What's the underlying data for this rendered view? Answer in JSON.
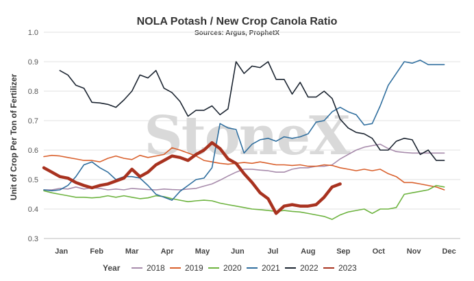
{
  "chart_data": {
    "type": "line",
    "title": "NOLA Potash / New Crop Canola Ratio",
    "subtitle": "Sources: Argus, ProphetX",
    "ylabel": "Unit of Crop Per Ton of Fertilizer",
    "xlabel": "",
    "watermark": "StoneX",
    "ylim": [
      0.3,
      1.0
    ],
    "xlim": [
      0,
      52
    ],
    "yticks": [
      0.3,
      0.4,
      0.5,
      0.6,
      0.7,
      0.8,
      0.9,
      1.0
    ],
    "ytick_labels": [
      "0.3",
      "0.4",
      "0.5",
      "0.6",
      "0.7",
      "0.8",
      "0.9",
      "1.0"
    ],
    "month_labels": [
      "Jan",
      "Feb",
      "Mar",
      "Apr",
      "May",
      "Jun",
      "Jul",
      "Aug",
      "Sep",
      "Oct",
      "Nov",
      "Dec"
    ],
    "month_positions": [
      2.2,
      6.6,
      11,
      15.4,
      19.8,
      24.2,
      28.6,
      33,
      37.4,
      41.8,
      46.2,
      50.6
    ],
    "grid": "horizontal",
    "legend_title": "Year",
    "legend_position": "bottom",
    "series": [
      {
        "name": "2018",
        "color": "#a78bab",
        "width": 1.6,
        "x": [
          0,
          1,
          2,
          3,
          4,
          5,
          6,
          7,
          8,
          9,
          10,
          11,
          12,
          13,
          14,
          15,
          16,
          17,
          18,
          19,
          20,
          21,
          22,
          23,
          24,
          25,
          26,
          27,
          28,
          29,
          30,
          31,
          32,
          33,
          34,
          35,
          36,
          37,
          38,
          39,
          40,
          41,
          42,
          43,
          44,
          45,
          46,
          47,
          48,
          49,
          50
        ],
        "y": [
          0.465,
          0.465,
          0.47,
          0.468,
          0.475,
          0.468,
          0.472,
          0.47,
          0.465,
          0.468,
          0.465,
          0.47,
          0.468,
          0.466,
          0.465,
          0.468,
          0.466,
          0.465,
          0.468,
          0.47,
          0.478,
          0.485,
          0.498,
          0.512,
          0.525,
          0.535,
          0.535,
          0.532,
          0.53,
          0.525,
          0.525,
          0.535,
          0.54,
          0.54,
          0.545,
          0.545,
          0.55,
          0.57,
          0.585,
          0.6,
          0.61,
          0.615,
          0.62,
          0.605,
          0.595,
          0.592,
          0.59,
          0.59,
          0.59,
          0.59,
          0.59
        ]
      },
      {
        "name": "2019",
        "color": "#d95f2b",
        "width": 1.6,
        "x": [
          0,
          1,
          2,
          3,
          4,
          5,
          6,
          7,
          8,
          9,
          10,
          11,
          12,
          13,
          14,
          15,
          16,
          17,
          18,
          19,
          20,
          21,
          22,
          23,
          24,
          25,
          26,
          27,
          28,
          29,
          30,
          31,
          32,
          33,
          34,
          35,
          36,
          37,
          38,
          39,
          40,
          41,
          42,
          43,
          44,
          45,
          46,
          47,
          48,
          49,
          50
        ],
        "y": [
          0.578,
          0.582,
          0.58,
          0.575,
          0.57,
          0.565,
          0.565,
          0.56,
          0.572,
          0.58,
          0.572,
          0.568,
          0.582,
          0.575,
          0.58,
          0.585,
          0.608,
          0.6,
          0.59,
          0.58,
          0.565,
          0.56,
          0.555,
          0.552,
          0.555,
          0.558,
          0.555,
          0.56,
          0.555,
          0.55,
          0.55,
          0.548,
          0.55,
          0.545,
          0.545,
          0.55,
          0.548,
          0.54,
          0.535,
          0.53,
          0.535,
          0.53,
          0.535,
          0.52,
          0.51,
          0.49,
          0.49,
          0.485,
          0.48,
          0.475,
          0.465
        ]
      },
      {
        "name": "2020",
        "color": "#6db33f",
        "width": 1.6,
        "x": [
          0,
          1,
          2,
          3,
          4,
          5,
          6,
          7,
          8,
          9,
          10,
          11,
          12,
          13,
          14,
          15,
          16,
          17,
          18,
          19,
          20,
          21,
          22,
          23,
          24,
          25,
          26,
          27,
          28,
          29,
          30,
          31,
          32,
          33,
          34,
          35,
          36,
          37,
          38,
          39,
          40,
          41,
          42,
          43,
          44,
          45,
          46,
          47,
          48,
          49,
          50
        ],
        "y": [
          0.462,
          0.455,
          0.45,
          0.445,
          0.44,
          0.44,
          0.438,
          0.44,
          0.445,
          0.44,
          0.445,
          0.44,
          0.435,
          0.438,
          0.445,
          0.442,
          0.435,
          0.43,
          0.425,
          0.428,
          0.43,
          0.428,
          0.42,
          0.415,
          0.41,
          0.405,
          0.4,
          0.398,
          0.395,
          0.392,
          0.395,
          0.392,
          0.39,
          0.385,
          0.38,
          0.375,
          0.365,
          0.38,
          0.39,
          0.395,
          0.4,
          0.385,
          0.4,
          0.4,
          0.405,
          0.45,
          0.455,
          0.46,
          0.465,
          0.48,
          0.475
        ]
      },
      {
        "name": "2021",
        "color": "#2f6e9e",
        "width": 1.6,
        "x": [
          0,
          1,
          2,
          3,
          4,
          5,
          6,
          7,
          8,
          9,
          10,
          11,
          12,
          13,
          14,
          15,
          16,
          17,
          18,
          19,
          20,
          21,
          22,
          23,
          24,
          25,
          26,
          27,
          28,
          29,
          30,
          31,
          32,
          33,
          34,
          35,
          36,
          37,
          38,
          39,
          40,
          41,
          42,
          43,
          44,
          45,
          46,
          47,
          48,
          49,
          50
        ],
        "y": [
          0.465,
          0.462,
          0.465,
          0.48,
          0.51,
          0.55,
          0.56,
          0.54,
          0.525,
          0.5,
          0.51,
          0.51,
          0.505,
          0.48,
          0.45,
          0.44,
          0.43,
          0.46,
          0.48,
          0.5,
          0.505,
          0.54,
          0.69,
          0.675,
          0.67,
          0.59,
          0.62,
          0.635,
          0.64,
          0.63,
          0.645,
          0.64,
          0.645,
          0.655,
          0.695,
          0.7,
          0.73,
          0.745,
          0.73,
          0.72,
          0.685,
          0.69,
          0.75,
          0.82,
          0.86,
          0.9,
          0.895,
          0.905,
          0.89,
          0.89,
          0.89
        ]
      },
      {
        "name": "2022",
        "color": "#1b2430",
        "width": 1.6,
        "x": [
          2,
          3,
          4,
          5,
          6,
          7,
          8,
          9,
          10,
          11,
          12,
          13,
          14,
          15,
          16,
          17,
          18,
          19,
          20,
          21,
          22,
          23,
          24,
          25,
          26,
          27,
          28,
          29,
          30,
          31,
          32,
          33,
          34,
          35,
          36,
          37,
          38,
          39,
          40,
          41,
          42,
          43,
          44,
          45,
          46,
          47,
          48,
          49,
          50
        ],
        "y": [
          0.87,
          0.855,
          0.82,
          0.81,
          0.762,
          0.76,
          0.755,
          0.745,
          0.77,
          0.8,
          0.855,
          0.845,
          0.87,
          0.81,
          0.795,
          0.765,
          0.715,
          0.735,
          0.735,
          0.75,
          0.72,
          0.74,
          0.9,
          0.86,
          0.885,
          0.88,
          0.9,
          0.84,
          0.84,
          0.79,
          0.83,
          0.78,
          0.78,
          0.8,
          0.775,
          0.705,
          0.675,
          0.66,
          0.655,
          0.64,
          0.6,
          0.6,
          0.63,
          0.64,
          0.635,
          0.585,
          0.6,
          0.565,
          0.565
        ]
      },
      {
        "name": "2023",
        "color": "#a8321f",
        "width": 4.5,
        "x": [
          0,
          1,
          2,
          3,
          4,
          5,
          6,
          7,
          8,
          9,
          10,
          11,
          12,
          13,
          14,
          15,
          16,
          17,
          18,
          19,
          20,
          21,
          22,
          23,
          24,
          25,
          26,
          27,
          28,
          29,
          30,
          31,
          32,
          33,
          34,
          35,
          36,
          37
        ],
        "y": [
          0.54,
          0.525,
          0.51,
          0.505,
          0.49,
          0.48,
          0.472,
          0.48,
          0.485,
          0.495,
          0.505,
          0.535,
          0.51,
          0.525,
          0.55,
          0.565,
          0.58,
          0.575,
          0.565,
          0.585,
          0.6,
          0.625,
          0.605,
          0.57,
          0.555,
          0.52,
          0.49,
          0.455,
          0.435,
          0.385,
          0.41,
          0.415,
          0.41,
          0.41,
          0.415,
          0.44,
          0.475,
          0.485
        ]
      }
    ]
  }
}
